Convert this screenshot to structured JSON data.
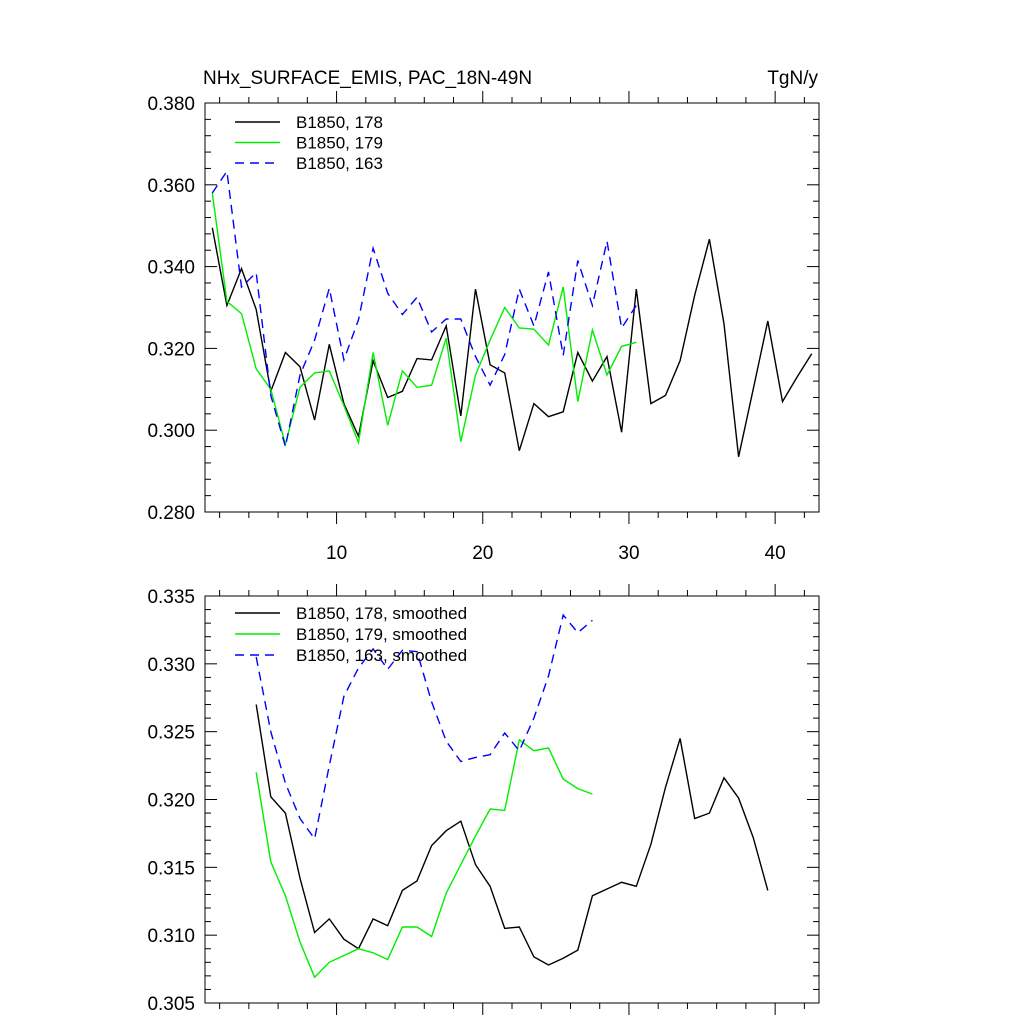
{
  "colors": {
    "black": "#000000",
    "green": "#00ee00",
    "blue": "#0000ff",
    "background": "#ffffff"
  },
  "chart_data": [
    {
      "type": "line",
      "title": "NHx_SURFACE_EMIS, PAC_18N-49N",
      "units": "TgN/y",
      "xlim": [
        1,
        43
      ],
      "ylim": [
        0.28,
        0.38
      ],
      "yticks": [
        "0.280",
        "0.300",
        "0.320",
        "0.340",
        "0.360",
        "0.380"
      ],
      "xticks": [
        "10",
        "20",
        "30",
        "40"
      ],
      "legend_position": "top-left",
      "series": [
        {
          "name": "B1850, 178",
          "color": "#000000",
          "dash": "solid",
          "x": [
            1.5,
            2.5,
            3.5,
            4.5,
            5.5,
            6.5,
            7.5,
            8.5,
            9.5,
            10.5,
            11.5,
            12.5,
            13.5,
            14.5,
            15.5,
            16.5,
            17.5,
            18.5,
            19.5,
            20.5,
            21.5,
            22.5,
            23.5,
            24.5,
            25.5,
            26.5,
            27.5,
            28.5,
            29.5,
            30.5,
            31.5,
            32.5,
            33.5,
            34.5,
            35.5,
            36.5,
            37.5,
            38.5,
            39.5,
            40.5,
            41.5,
            42.5
          ],
          "y": [
            0.3495,
            0.3305,
            0.3395,
            0.3295,
            0.3095,
            0.319,
            0.3155,
            0.3025,
            0.321,
            0.3065,
            0.2985,
            0.317,
            0.308,
            0.3095,
            0.3175,
            0.3172,
            0.3255,
            0.3035,
            0.3345,
            0.316,
            0.314,
            0.295,
            0.3065,
            0.3033,
            0.3045,
            0.319,
            0.312,
            0.318,
            0.2995,
            0.3345,
            0.3065,
            0.3085,
            0.317,
            0.333,
            0.3467,
            0.326,
            0.2935,
            0.31,
            0.3267,
            0.307,
            0.313,
            0.3187
          ]
        },
        {
          "name": "B1850, 179",
          "color": "#00ee00",
          "dash": "solid",
          "x": [
            1.5,
            2.5,
            3.5,
            4.5,
            5.5,
            6.5,
            7.5,
            8.5,
            9.5,
            10.5,
            11.5,
            12.5,
            13.5,
            14.5,
            15.5,
            16.5,
            17.5,
            18.5,
            19.5,
            20.5,
            21.5,
            22.5,
            23.5,
            24.5,
            25.5,
            26.5,
            27.5,
            28.5,
            29.5,
            30.5
          ],
          "y": [
            0.358,
            0.3315,
            0.3285,
            0.315,
            0.31,
            0.2965,
            0.3105,
            0.314,
            0.3145,
            0.306,
            0.297,
            0.319,
            0.3012,
            0.3145,
            0.3105,
            0.311,
            0.3225,
            0.2972,
            0.3135,
            0.322,
            0.33,
            0.325,
            0.3247,
            0.3208,
            0.335,
            0.307,
            0.3245,
            0.3135,
            0.3205,
            0.3215
          ]
        },
        {
          "name": "B1850, 163",
          "color": "#0000ff",
          "dash": "dashed",
          "x": [
            1.5,
            2.5,
            3.5,
            4.5,
            5.5,
            6.5,
            7.5,
            8.5,
            9.5,
            10.5,
            11.5,
            12.5,
            13.5,
            14.5,
            15.5,
            16.5,
            17.5,
            18.5,
            19.5,
            20.5,
            21.5,
            22.5,
            23.5,
            24.5,
            25.5,
            26.5,
            27.5,
            28.5,
            29.5,
            30.5
          ],
          "y": [
            0.358,
            0.3633,
            0.335,
            0.3385,
            0.3085,
            0.296,
            0.3135,
            0.322,
            0.3347,
            0.3172,
            0.327,
            0.3445,
            0.3335,
            0.3283,
            0.3325,
            0.324,
            0.3272,
            0.3272,
            0.318,
            0.311,
            0.3185,
            0.3345,
            0.3255,
            0.3387,
            0.3183,
            0.3415,
            0.3305,
            0.3462,
            0.325,
            0.3305
          ]
        }
      ]
    },
    {
      "type": "line",
      "title": "",
      "xlim": [
        1,
        43
      ],
      "ylim": [
        0.305,
        0.335
      ],
      "yticks": [
        "0.305",
        "0.310",
        "0.315",
        "0.320",
        "0.325",
        "0.330",
        "0.335"
      ],
      "legend_position": "top-left",
      "series": [
        {
          "name": "B1850, 178, smoothed",
          "color": "#000000",
          "dash": "solid",
          "x": [
            4.5,
            5.5,
            6.5,
            7.5,
            8.5,
            9.5,
            10.5,
            11.5,
            12.5,
            13.5,
            14.5,
            15.5,
            16.5,
            17.5,
            18.5,
            19.5,
            20.5,
            21.5,
            22.5,
            23.5,
            24.5,
            25.5,
            26.5,
            27.5,
            28.5,
            29.5,
            30.5,
            31.5,
            32.5,
            33.5,
            34.5,
            35.5,
            36.5,
            37.5,
            38.5,
            39.5
          ],
          "y": [
            0.327,
            0.3202,
            0.319,
            0.3142,
            0.3102,
            0.3112,
            0.3097,
            0.309,
            0.3112,
            0.3107,
            0.3133,
            0.314,
            0.3166,
            0.3177,
            0.3184,
            0.3152,
            0.3136,
            0.3105,
            0.3106,
            0.3084,
            0.3078,
            0.3083,
            0.3089,
            0.3129,
            0.3134,
            0.3139,
            0.3136,
            0.3167,
            0.3209,
            0.3245,
            0.3186,
            0.319,
            0.3216,
            0.3201,
            0.3172,
            0.3133
          ]
        },
        {
          "name": "B1850, 179, smoothed",
          "color": "#00ee00",
          "dash": "solid",
          "x": [
            4.5,
            5.5,
            6.5,
            7.5,
            8.5,
            9.5,
            10.5,
            11.5,
            12.5,
            13.5,
            14.5,
            15.5,
            16.5,
            17.5,
            18.5,
            19.5,
            20.5,
            21.5,
            22.5,
            23.5,
            24.5,
            25.5,
            26.5,
            27.5
          ],
          "y": [
            0.322,
            0.3154,
            0.3129,
            0.3095,
            0.3069,
            0.308,
            0.3085,
            0.309,
            0.3087,
            0.3082,
            0.3106,
            0.3106,
            0.3099,
            0.3131,
            0.3152,
            0.3173,
            0.3193,
            0.3192,
            0.3244,
            0.3236,
            0.3238,
            0.3215,
            0.3208,
            0.3204
          ]
        },
        {
          "name": "B1850, 163, smoothed",
          "color": "#0000ff",
          "dash": "dashed",
          "x": [
            4.5,
            5.5,
            6.5,
            7.5,
            8.5,
            9.5,
            10.5,
            11.5,
            12.5,
            13.5,
            14.5,
            15.5,
            16.5,
            17.5,
            18.5,
            19.5,
            20.5,
            21.5,
            22.5,
            23.5,
            24.5,
            25.5,
            26.5,
            27.5
          ],
          "y": [
            0.3305,
            0.325,
            0.3212,
            0.3186,
            0.3171,
            0.3225,
            0.3276,
            0.3297,
            0.3311,
            0.3296,
            0.331,
            0.3309,
            0.3272,
            0.3243,
            0.3228,
            0.3231,
            0.3233,
            0.3249,
            0.3236,
            0.326,
            0.3291,
            0.3336,
            0.3323,
            0.3332
          ]
        }
      ]
    }
  ]
}
